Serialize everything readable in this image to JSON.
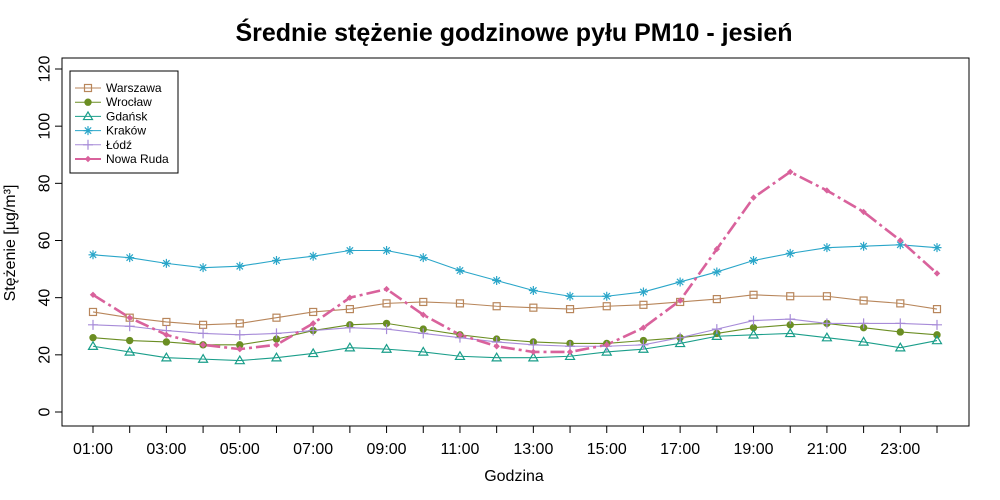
{
  "chart_data": {
    "type": "line",
    "title": "Średnie stężenie godzinowe pyłu PM10 - jesień",
    "xlabel": "Godzina",
    "ylabel": "Stężenie [µg/m³]",
    "ylim": [
      0,
      120
    ],
    "y_ticks": [
      0,
      20,
      40,
      60,
      80,
      100,
      120
    ],
    "x": [
      1,
      2,
      3,
      4,
      5,
      6,
      7,
      8,
      9,
      10,
      11,
      12,
      13,
      14,
      15,
      16,
      17,
      18,
      19,
      20,
      21,
      22,
      23,
      24
    ],
    "x_ticks": [
      1,
      3,
      5,
      7,
      9,
      11,
      13,
      15,
      17,
      19,
      21,
      23
    ],
    "x_tick_labels": [
      "01:00",
      "03:00",
      "05:00",
      "07:00",
      "09:00",
      "11:00",
      "13:00",
      "15:00",
      "17:00",
      "19:00",
      "21:00",
      "23:00"
    ],
    "legend_position": "top-left",
    "grid": false,
    "series": [
      {
        "name": "Warszawa",
        "color": "#B8865B",
        "marker": "square-open",
        "values": [
          35,
          33,
          31.5,
          30.5,
          31,
          33,
          35,
          36,
          38,
          38.5,
          38,
          37,
          36.5,
          36,
          37,
          37.5,
          38.5,
          39.5,
          41,
          40.5,
          40.5,
          39,
          38,
          36
        ]
      },
      {
        "name": "Wrocław",
        "color": "#6B8E23",
        "marker": "circle-filled",
        "values": [
          26,
          25,
          24.5,
          23.5,
          23.5,
          25.5,
          28.5,
          30.5,
          31,
          29,
          27,
          25.5,
          24.5,
          24,
          24,
          25,
          26,
          27.5,
          29.5,
          30.5,
          31,
          29.5,
          28,
          27
        ]
      },
      {
        "name": "Gdańsk",
        "color": "#1A9E8A",
        "marker": "triangle-open",
        "values": [
          23,
          21,
          19,
          18.5,
          18,
          19,
          20.5,
          22.5,
          22,
          21,
          19.5,
          19,
          19,
          19.5,
          21,
          22,
          24,
          26.5,
          27,
          27.5,
          26,
          24.5,
          22.5,
          25
        ]
      },
      {
        "name": "Kraków",
        "color": "#2AA6C9",
        "marker": "asterisk",
        "values": [
          55,
          54,
          52,
          50.5,
          51,
          53,
          54.5,
          56.5,
          56.5,
          54,
          49.5,
          46,
          42.5,
          40.5,
          40.5,
          42,
          45.5,
          49,
          53,
          55.5,
          57.5,
          58,
          58.5,
          57.5
        ]
      },
      {
        "name": "Łódź",
        "color": "#A78BD8",
        "marker": "plus",
        "values": [
          30.5,
          30,
          28.5,
          27.5,
          27,
          27.5,
          28.5,
          29.5,
          29,
          27.5,
          26,
          24.5,
          23.5,
          23,
          23,
          23.5,
          26,
          29,
          32,
          32.5,
          31,
          31,
          31,
          30.5
        ]
      },
      {
        "name": "Nowa Ruda",
        "color": "#D9629C",
        "marker": "diamond-small",
        "values": [
          41,
          33,
          27,
          23.5,
          22,
          23.5,
          31,
          40,
          43,
          34,
          27,
          23,
          21,
          21,
          23.5,
          29.5,
          39,
          57,
          75,
          84,
          77.5,
          70,
          60,
          48.5
        ]
      }
    ]
  }
}
